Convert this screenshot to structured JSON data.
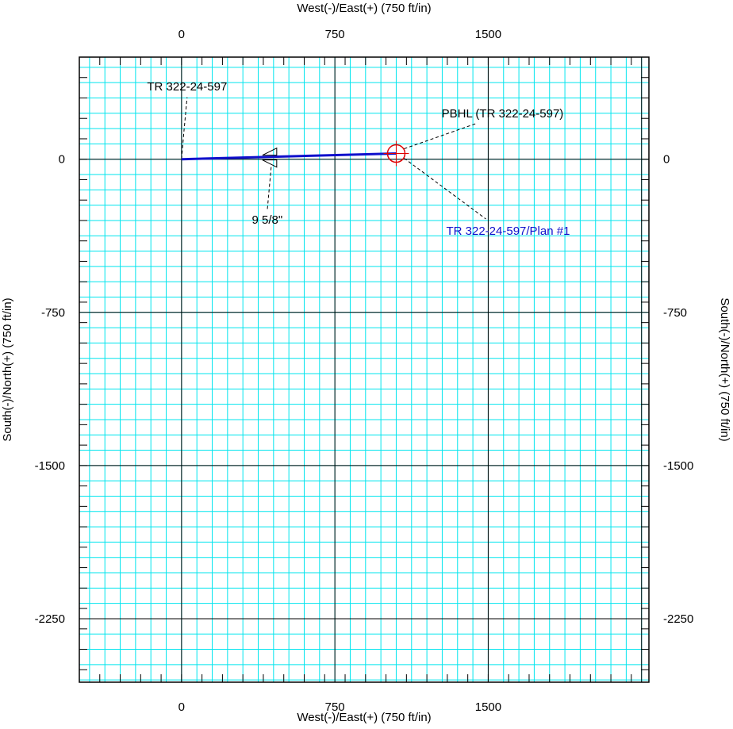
{
  "chart_data": {
    "type": "line",
    "title": "",
    "x_axis": {
      "label_top": "West(-)/East(+) (750 ft/in)",
      "label_bottom": "West(-)/East(+) (750 ft/in)",
      "min": -500,
      "max": 2286,
      "major_step": 750,
      "minor_step": 75,
      "tick_step": 100,
      "tick_labels": [
        "0",
        "750",
        "1500"
      ]
    },
    "y_axis": {
      "label_left": "South(-)/North(+) (750 ft/in)",
      "label_right": "South(-)/North(+) (750 ft/in)",
      "min": -2561,
      "max": 500,
      "major_step": 750,
      "minor_step": 75,
      "tick_step": 100,
      "tick_labels": [
        "0",
        "-750",
        "-1500",
        "-2250"
      ]
    },
    "grid": true,
    "colors": {
      "minor_grid": "#00e5ee",
      "major_grid": "#000000",
      "well_path": "#1010cc",
      "target": "#e00000",
      "plan_label": "#1010cc",
      "leader": "#000000"
    },
    "series": [
      {
        "name": "TR 322-24-597/Plan #1",
        "x": [
          0,
          1050
        ],
        "y": [
          0,
          28
        ]
      }
    ],
    "annotations": [
      {
        "text": "TR 322-24-597",
        "x": 0,
        "y": 0
      },
      {
        "text": "9 5/8\"",
        "x": 450,
        "y": 8
      },
      {
        "text": "PBHL (TR 322-24-597)",
        "x": 1050,
        "y": 28
      },
      {
        "text": "TR 322-24-597/Plan #1",
        "x": 1050,
        "y": 28
      }
    ]
  }
}
